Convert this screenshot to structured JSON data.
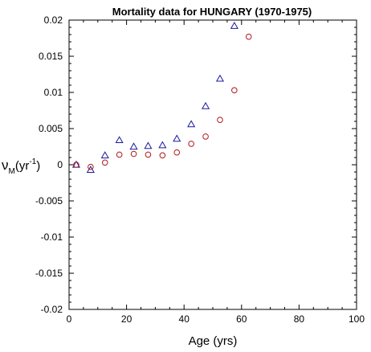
{
  "chart_data": {
    "type": "scatter",
    "title": "Mortality data for HUNGARY (1970-1975)",
    "xlabel": "Age (yrs)",
    "ylabel": {
      "symbol": "ν",
      "subscript": "M",
      "open": "(yr",
      "superscript": "-1",
      "close": ")"
    },
    "xlim": [
      0,
      100
    ],
    "ylim": [
      -0.02,
      0.02
    ],
    "x_ticks": [
      "0",
      "20",
      "40",
      "60",
      "80",
      "100"
    ],
    "y_ticks": [
      "-0.02",
      "-0.015",
      "-0.01",
      "-0.005",
      "0",
      "0.005",
      "0.01",
      "0.015",
      "0.02"
    ],
    "grid": false,
    "series": [
      {
        "marker": "triangle",
        "color": "#1a1a9c",
        "x": [
          2.5,
          7.5,
          12.5,
          17.5,
          22.5,
          27.5,
          32.5,
          37.5,
          42.5,
          47.5,
          52.5,
          57.5
        ],
        "y": [
          0.0,
          -0.0007,
          0.0013,
          0.0034,
          0.0025,
          0.0026,
          0.0027,
          0.0036,
          0.0056,
          0.0081,
          0.0119,
          0.0192
        ]
      },
      {
        "marker": "circle",
        "color": "#b01818",
        "x": [
          2.5,
          7.5,
          12.5,
          17.5,
          22.5,
          27.5,
          32.5,
          37.5,
          42.5,
          47.5,
          52.5,
          57.5,
          62.5
        ],
        "y": [
          0.0,
          -0.0003,
          0.0003,
          0.0014,
          0.0015,
          0.0014,
          0.0013,
          0.0017,
          0.0029,
          0.0039,
          0.0062,
          0.0103,
          0.0177
        ]
      }
    ]
  }
}
